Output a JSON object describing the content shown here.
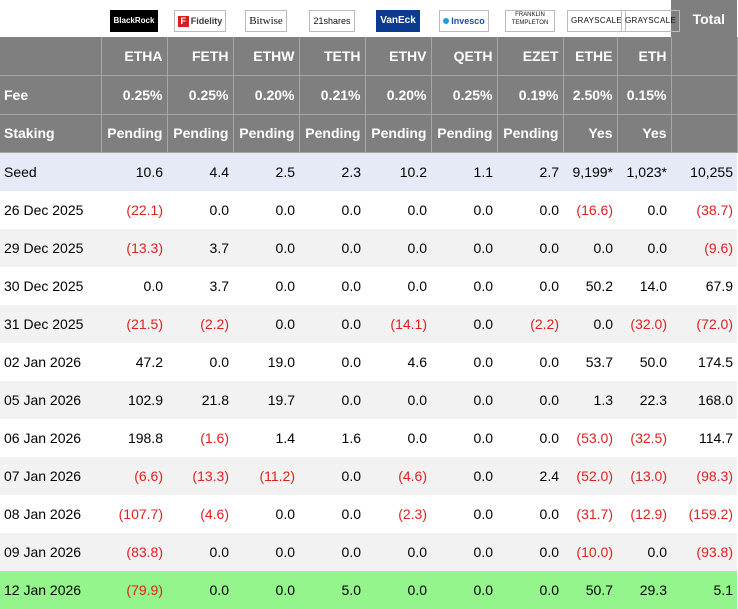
{
  "logos": [
    {
      "name": "blackrock-logo",
      "text": "BlackRock"
    },
    {
      "name": "fidelity-logo",
      "mark": "F",
      "text": "Fidelity"
    },
    {
      "name": "bitwise-logo",
      "text": "Bitwise"
    },
    {
      "name": "21shares-logo",
      "text": "21shares"
    },
    {
      "name": "vaneck-logo",
      "text": "VanEck"
    },
    {
      "name": "invesco-logo",
      "text": "Invesco"
    },
    {
      "name": "franklin-templeton-logo",
      "text": "FRANKLIN TEMPLETON"
    },
    {
      "name": "grayscale-logo",
      "text": "GRAYSCALE"
    },
    {
      "name": "grayscale-logo-2",
      "text": "GRAYSCALE"
    }
  ],
  "total_label": "Total",
  "tickers": [
    "ETHA",
    "FETH",
    "ETHW",
    "TETH",
    "ETHV",
    "QETH",
    "EZET",
    "ETHE",
    "ETH"
  ],
  "fee": {
    "label": "Fee",
    "values": [
      "0.25%",
      "0.25%",
      "0.20%",
      "0.21%",
      "0.20%",
      "0.25%",
      "0.19%",
      "2.50%",
      "0.15%"
    ]
  },
  "staking": {
    "label": "Staking",
    "values": [
      "Pending",
      "Pending",
      "Pending",
      "Pending",
      "Pending",
      "Pending",
      "Pending",
      "Yes",
      "Yes"
    ]
  },
  "rows": [
    {
      "label": "Seed",
      "cells": [
        "10.6",
        "4.4",
        "2.5",
        "2.3",
        "10.2",
        "1.1",
        "2.7",
        "9,199*",
        "1,023*",
        "10,255"
      ],
      "style": "seed"
    },
    {
      "label": "26 Dec 2025",
      "cells": [
        "(22.1)",
        "0.0",
        "0.0",
        "0.0",
        "0.0",
        "0.0",
        "0.0",
        "(16.6)",
        "0.0",
        "(38.7)"
      ]
    },
    {
      "label": "29 Dec 2025",
      "cells": [
        "(13.3)",
        "3.7",
        "0.0",
        "0.0",
        "0.0",
        "0.0",
        "0.0",
        "0.0",
        "0.0",
        "(9.6)"
      ]
    },
    {
      "label": "30 Dec 2025",
      "cells": [
        "0.0",
        "3.7",
        "0.0",
        "0.0",
        "0.0",
        "0.0",
        "0.0",
        "50.2",
        "14.0",
        "67.9"
      ]
    },
    {
      "label": "31 Dec 2025",
      "cells": [
        "(21.5)",
        "(2.2)",
        "0.0",
        "0.0",
        "(14.1)",
        "0.0",
        "(2.2)",
        "0.0",
        "(32.0)",
        "(72.0)"
      ]
    },
    {
      "label": "02 Jan 2026",
      "cells": [
        "47.2",
        "0.0",
        "19.0",
        "0.0",
        "4.6",
        "0.0",
        "0.0",
        "53.7",
        "50.0",
        "174.5"
      ]
    },
    {
      "label": "05 Jan 2026",
      "cells": [
        "102.9",
        "21.8",
        "19.7",
        "0.0",
        "0.0",
        "0.0",
        "0.0",
        "1.3",
        "22.3",
        "168.0"
      ]
    },
    {
      "label": "06 Jan 2026",
      "cells": [
        "198.8",
        "(1.6)",
        "1.4",
        "1.6",
        "0.0",
        "0.0",
        "0.0",
        "(53.0)",
        "(32.5)",
        "114.7"
      ]
    },
    {
      "label": "07 Jan 2026",
      "cells": [
        "(6.6)",
        "(13.3)",
        "(11.2)",
        "0.0",
        "(4.6)",
        "0.0",
        "2.4",
        "(52.0)",
        "(13.0)",
        "(98.3)"
      ]
    },
    {
      "label": "08 Jan 2026",
      "cells": [
        "(107.7)",
        "(4.6)",
        "0.0",
        "0.0",
        "(2.3)",
        "0.0",
        "0.0",
        "(31.7)",
        "(12.9)",
        "(159.2)"
      ]
    },
    {
      "label": "09 Jan 2026",
      "cells": [
        "(83.8)",
        "0.0",
        "0.0",
        "0.0",
        "0.0",
        "0.0",
        "0.0",
        "(10.0)",
        "0.0",
        "(93.8)"
      ]
    },
    {
      "label": "12 Jan 2026",
      "cells": [
        "(79.9)",
        "0.0",
        "0.0",
        "5.0",
        "0.0",
        "0.0",
        "0.0",
        "50.7",
        "29.3",
        "5.1"
      ],
      "style": "last"
    }
  ],
  "colors": {
    "header_bg": "#7f7f7f",
    "negative": "#e02020",
    "seed_bg": "#e5eaf6",
    "highlight_bg": "#93f58c",
    "zebra": "#f2f2f2"
  }
}
